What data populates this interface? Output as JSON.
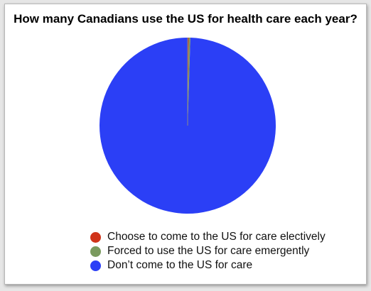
{
  "chart_data": {
    "type": "pie",
    "title": "How many Canadians use the US for health care each year?",
    "slices": [
      {
        "label": "Choose to come to the US for care electively",
        "value": 0.2,
        "color": "#d0341a"
      },
      {
        "label": "Forced to use the US for care emergently",
        "value": 0.3,
        "color": "#7a9a5e"
      },
      {
        "label": "Don’t come to the US for care",
        "value": 99.5,
        "color": "#2b3ff6"
      }
    ],
    "legend_position": "bottom"
  }
}
